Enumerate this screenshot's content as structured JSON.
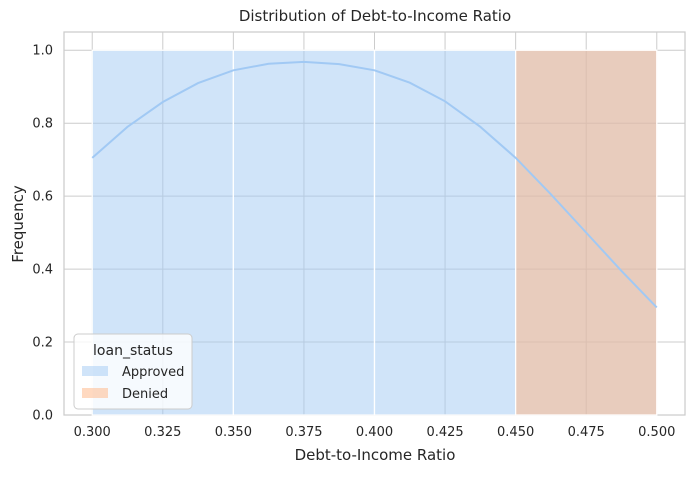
{
  "chart_data": {
    "type": "histogram",
    "title": "Distribution of Debt-to-Income Ratio",
    "xlabel": "Debt-to-Income Ratio",
    "ylabel": "Frequency",
    "xlim": [
      0.29,
      0.51
    ],
    "ylim": [
      0.0,
      1.05
    ],
    "x_ticks": [
      "0.300",
      "0.325",
      "0.350",
      "0.375",
      "0.400",
      "0.425",
      "0.450",
      "0.475",
      "0.500"
    ],
    "x_tick_values": [
      0.3,
      0.325,
      0.35,
      0.375,
      0.4,
      0.425,
      0.45,
      0.475,
      0.5
    ],
    "y_ticks": [
      "0.0",
      "0.2",
      "0.4",
      "0.6",
      "0.8",
      "1.0"
    ],
    "y_tick_values": [
      0.0,
      0.2,
      0.4,
      0.6,
      0.8,
      1.0
    ],
    "grid": true,
    "legend": {
      "title": "loan_status",
      "position": "lower-left",
      "entries": [
        {
          "label": "Approved",
          "color": "#a1c9f4"
        },
        {
          "label": "Denied",
          "color": "#ffb482"
        }
      ]
    },
    "series": [
      {
        "name": "Approved",
        "color": "#a1c9f4",
        "bins": [
          {
            "x0": 0.3,
            "x1": 0.35,
            "count": 1
          },
          {
            "x0": 0.35,
            "x1": 0.4,
            "count": 1
          },
          {
            "x0": 0.4,
            "x1": 0.45,
            "count": 1
          },
          {
            "x0": 0.45,
            "x1": 0.5,
            "count": 1
          }
        ]
      },
      {
        "name": "Denied",
        "color": "#ffb482",
        "bins": [
          {
            "x0": 0.45,
            "x1": 0.5,
            "count": 1
          }
        ]
      }
    ],
    "kde": {
      "series": "Approved",
      "color": "#a1c9f4",
      "x": [
        0.3,
        0.3125,
        0.325,
        0.3375,
        0.35,
        0.3625,
        0.375,
        0.3875,
        0.4,
        0.4125,
        0.425,
        0.4375,
        0.45,
        0.4625,
        0.475,
        0.4875,
        0.5
      ],
      "y": [
        0.705,
        0.79,
        0.858,
        0.91,
        0.945,
        0.963,
        0.968,
        0.962,
        0.945,
        0.911,
        0.86,
        0.79,
        0.705,
        0.605,
        0.5,
        0.395,
        0.295
      ]
    }
  }
}
